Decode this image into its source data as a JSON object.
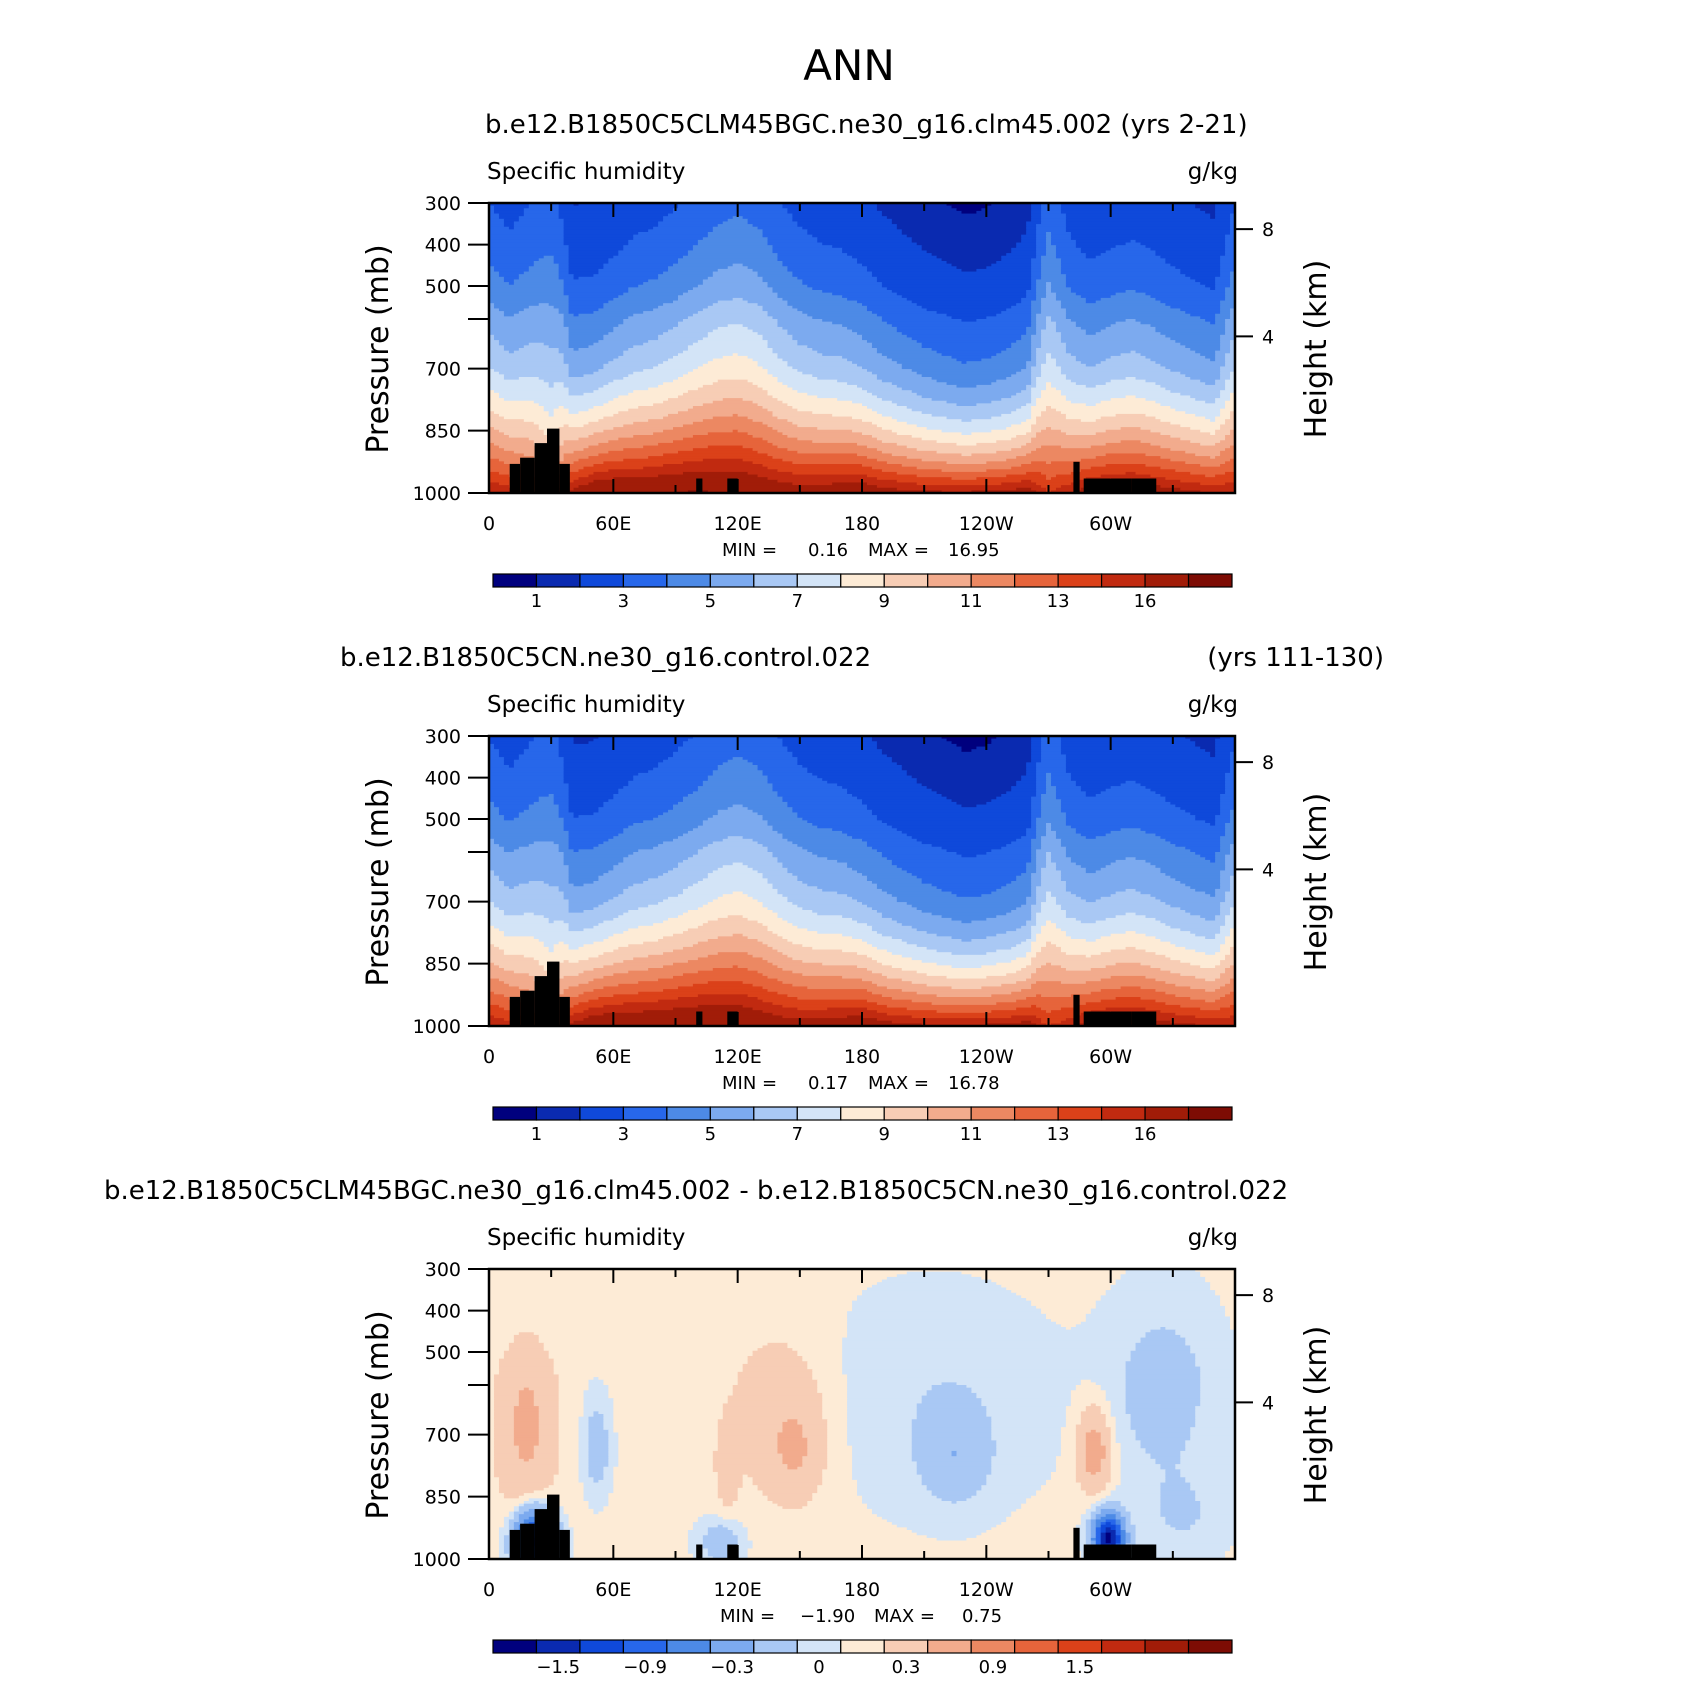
{
  "figure": {
    "title": "ANN"
  },
  "colors": {
    "qScale": [
      "#00007e",
      "#0a2ab0",
      "#0f49da",
      "#2767ea",
      "#4d8ae6",
      "#7caaef",
      "#a9c8f4",
      "#d3e4f7",
      "#fdebd6",
      "#f7cdb5",
      "#f2ab8d",
      "#ec8862",
      "#e6643b",
      "#db4119",
      "#c12a10",
      "#a11c08",
      "#7d0c04"
    ],
    "diffScale": [
      "#00007e",
      "#0a2ab0",
      "#0f49da",
      "#2767ea",
      "#4d8ae6",
      "#7caaef",
      "#a9c8f4",
      "#d3e4f7",
      "#fdebd6",
      "#f7cdb5",
      "#f2ab8d",
      "#ec8862",
      "#e6643b",
      "#db4119",
      "#c12a10",
      "#a11c08",
      "#7d0c04"
    ],
    "terrain": "#000000"
  },
  "chart_data": [
    {
      "type": "heatmap",
      "title_left": "b.e12.B1850C5CLM45BGC.ne30_g16.clm45.002 (yrs 2-21)",
      "title_right": "",
      "variable": "Specific humidity",
      "units": "g/kg",
      "ylabel": "Pressure (mb)",
      "y2label": "Height (km)",
      "x_ticks": [
        "0",
        "60E",
        "120E",
        "180",
        "120W",
        "60W"
      ],
      "y_ticks": [
        "300",
        "400",
        "500",
        "",
        "700",
        "850",
        "1000"
      ],
      "y_tick_values": [
        300,
        400,
        500,
        600,
        700,
        850,
        1000
      ],
      "y2_ticks": [
        "8",
        "4"
      ],
      "ylim": [
        1000,
        300
      ],
      "xlim": [
        0,
        360
      ],
      "stats": {
        "min_label": "MIN =",
        "min": "0.16",
        "max_label": "MAX =",
        "max": "16.95"
      },
      "colorbar_labels": [
        "1",
        "3",
        "5",
        "7",
        "9",
        "11",
        "13",
        "16"
      ],
      "contour_levels": [
        0.5,
        1,
        2,
        3,
        4,
        5,
        6,
        7,
        8,
        9,
        10,
        11,
        12,
        13,
        14,
        16
      ],
      "profile": {
        "surface_q": [
          14.0,
          13.6,
          12.6,
          10.5,
          14.5,
          15.6,
          15.9,
          15.8,
          15.9,
          16.1,
          16.2,
          16.1,
          16.0,
          15.5,
          15.1,
          14.9,
          15.0,
          15.2,
          15.4,
          14.8,
          14.5,
          14.3,
          14.2,
          14.2,
          14.3,
          14.5,
          14.8,
          13.0,
          13.9,
          14.8,
          15.2,
          15.3,
          15.0,
          14.6,
          14.3,
          14.0,
          14.0
        ],
        "scale_height_hpa": [
          360,
          330,
          380,
          460,
          260,
          255,
          275,
          300,
          310,
          330,
          355,
          385,
          400,
          390,
          350,
          320,
          300,
          290,
          270,
          250,
          235,
          220,
          210,
          200,
          205,
          215,
          235,
          430,
          320,
          280,
          290,
          300,
          290,
          275,
          262,
          250,
          360
        ]
      }
    },
    {
      "type": "heatmap",
      "title_left": "b.e12.B1850C5CN.ne30_g16.control.022",
      "title_right": "(yrs 111-130)",
      "variable": "Specific humidity",
      "units": "g/kg",
      "ylabel": "Pressure (mb)",
      "y2label": "Height (km)",
      "x_ticks": [
        "0",
        "60E",
        "120E",
        "180",
        "120W",
        "60W"
      ],
      "y_ticks": [
        "300",
        "400",
        "500",
        "",
        "700",
        "850",
        "1000"
      ],
      "y_tick_values": [
        300,
        400,
        500,
        600,
        700,
        850,
        1000
      ],
      "y2_ticks": [
        "8",
        "4"
      ],
      "ylim": [
        1000,
        300
      ],
      "xlim": [
        0,
        360
      ],
      "stats": {
        "min_label": "MIN =",
        "min": "0.17",
        "max_label": "MAX =",
        "max": "16.78"
      },
      "colorbar_labels": [
        "1",
        "3",
        "5",
        "7",
        "9",
        "11",
        "13",
        "16"
      ],
      "contour_levels": [
        0.5,
        1,
        2,
        3,
        4,
        5,
        6,
        7,
        8,
        9,
        10,
        11,
        12,
        13,
        14,
        16
      ],
      "profile": {
        "surface_q": [
          14.0,
          13.5,
          12.5,
          10.4,
          14.4,
          15.5,
          15.8,
          15.7,
          15.8,
          16.0,
          16.1,
          16.0,
          15.9,
          15.4,
          15.0,
          14.8,
          14.9,
          15.1,
          15.3,
          14.7,
          14.4,
          14.2,
          14.1,
          14.1,
          14.2,
          14.4,
          14.7,
          12.9,
          13.8,
          14.7,
          15.1,
          15.2,
          14.9,
          14.5,
          14.2,
          13.9,
          13.9
        ],
        "scale_height_hpa": [
          355,
          325,
          372,
          450,
          255,
          250,
          268,
          292,
          302,
          318,
          340,
          372,
          390,
          382,
          345,
          316,
          296,
          286,
          266,
          246,
          232,
          218,
          208,
          198,
          203,
          212,
          230,
          420,
          312,
          274,
          284,
          294,
          284,
          270,
          258,
          246,
          355
        ]
      }
    },
    {
      "type": "heatmap",
      "title_left": "b.e12.B1850C5CLM45BGC.ne30_g16.clm45.002 - b.e12.B1850C5CN.ne30_g16.control.022",
      "title_right": "",
      "variable": "Specific humidity",
      "units": "g/kg",
      "ylabel": "Pressure (mb)",
      "y2label": "Height (km)",
      "x_ticks": [
        "0",
        "60E",
        "120E",
        "180",
        "120W",
        "60W"
      ],
      "y_ticks": [
        "300",
        "400",
        "500",
        "",
        "700",
        "850",
        "1000"
      ],
      "y_tick_values": [
        300,
        400,
        500,
        600,
        700,
        850,
        1000
      ],
      "y2_ticks": [
        "8",
        "4"
      ],
      "ylim": [
        1000,
        300
      ],
      "xlim": [
        0,
        360
      ],
      "stats": {
        "min_label": "MIN =",
        "min": "−1.90",
        "max_label": "MAX =",
        "max": "0.75"
      },
      "colorbar_labels": [
        "−1.5",
        "−0.9",
        "−0.3",
        "0",
        "0.3",
        "0.9",
        "1.5"
      ],
      "contour_levels": [
        -1.8,
        -1.5,
        -1.2,
        -0.9,
        -0.6,
        -0.3,
        -0.1,
        0,
        0.1,
        0.3,
        0.6,
        0.9,
        1.2,
        1.5,
        1.8,
        2.1
      ]
    }
  ]
}
